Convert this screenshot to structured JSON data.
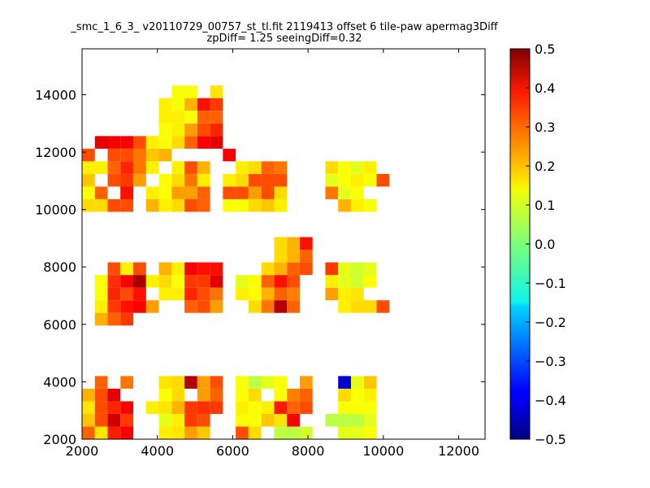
{
  "chart_data": {
    "type": "heatmap",
    "title": "_smc_1_6_3_ v20110729_00757_st_tl.fit 2119413 offset 6 tile-paw apermag3Diff",
    "subtitle": "zpDiff= 1.25 seeingDiff=0.32",
    "xlabel": "",
    "ylabel": "",
    "xlim": [
      2000,
      12700
    ],
    "ylim": [
      2000,
      15600
    ],
    "x_ticks": [
      "2000",
      "4000",
      "6000",
      "8000",
      "10000",
      "12000"
    ],
    "y_ticks": [
      "2000",
      "4000",
      "6000",
      "8000",
      "10000",
      "12000",
      "14000"
    ],
    "colormap": "jet",
    "clim": [
      -0.5,
      0.5
    ],
    "colorbar_ticks": [
      "0.5",
      "0.4",
      "0.3",
      "0.2",
      "0.1",
      "0.0",
      "−0.1",
      "−0.2",
      "−0.3",
      "−0.4",
      "−0.5"
    ],
    "colorbar_tick_values": [
      0.5,
      0.4,
      0.3,
      0.2,
      0.1,
      0.0,
      -0.1,
      -0.2,
      -0.3,
      -0.4,
      -0.5
    ],
    "grid": false,
    "cell_size": [
      340,
      440
    ],
    "x0": 2000,
    "y0": 2000,
    "cells": [
      [
        0,
        0,
        0.28
      ],
      [
        1,
        0,
        0.15
      ],
      [
        2,
        0,
        0.35
      ],
      [
        3,
        0,
        0.38
      ],
      [
        0,
        1,
        0.18
      ],
      [
        1,
        1,
        0.3
      ],
      [
        2,
        1,
        0.42
      ],
      [
        3,
        1,
        0.32
      ],
      [
        0,
        2,
        0.15
      ],
      [
        1,
        2,
        0.3
      ],
      [
        2,
        2,
        0.34
      ],
      [
        3,
        2,
        0.38
      ],
      [
        0,
        3,
        0.2
      ],
      [
        1,
        3,
        0.3
      ],
      [
        2,
        3,
        0.4
      ],
      [
        3,
        4,
        0.26
      ],
      [
        1,
        4,
        0.28
      ],
      [
        6,
        0,
        0.14
      ],
      [
        7,
        0,
        0.15
      ],
      [
        8,
        0,
        0.22
      ],
      [
        9,
        0,
        0.18
      ],
      [
        6,
        1,
        0.1
      ],
      [
        7,
        1,
        0.14
      ],
      [
        8,
        1,
        0.32
      ],
      [
        9,
        1,
        0.3
      ],
      [
        5,
        2,
        0.14
      ],
      [
        6,
        2,
        0.15
      ],
      [
        7,
        2,
        0.2
      ],
      [
        8,
        2,
        0.32
      ],
      [
        9,
        2,
        0.33
      ],
      [
        10,
        2,
        0.32
      ],
      [
        6,
        3,
        0.12
      ],
      [
        7,
        3,
        0.16
      ],
      [
        9,
        3,
        0.22
      ],
      [
        10,
        3,
        0.28
      ],
      [
        6,
        4,
        0.15
      ],
      [
        7,
        4,
        0.16
      ],
      [
        8,
        4,
        0.45
      ],
      [
        9,
        4,
        0.22
      ],
      [
        10,
        4,
        0.3
      ],
      [
        12,
        0,
        0.3
      ],
      [
        13,
        0,
        0.16
      ],
      [
        15,
        0,
        0.06
      ],
      [
        16,
        0,
        0.06
      ],
      [
        17,
        0,
        0.08
      ],
      [
        12,
        1,
        0.12
      ],
      [
        13,
        1,
        0.12
      ],
      [
        14,
        1,
        0.18
      ],
      [
        15,
        1,
        0.15
      ],
      [
        16,
        1,
        0.38
      ],
      [
        12,
        2,
        0.14
      ],
      [
        13,
        2,
        0.12
      ],
      [
        14,
        2,
        0.14
      ],
      [
        15,
        2,
        0.35
      ],
      [
        16,
        2,
        0.28
      ],
      [
        17,
        2,
        0.3
      ],
      [
        12,
        3,
        0.12
      ],
      [
        13,
        3,
        0.16
      ],
      [
        15,
        3,
        0.12
      ],
      [
        16,
        3,
        0.25
      ],
      [
        17,
        3,
        0.28
      ],
      [
        12,
        4,
        0.12
      ],
      [
        13,
        4,
        0.06
      ],
      [
        14,
        4,
        0.1
      ],
      [
        15,
        4,
        0.12
      ],
      [
        17,
        4,
        0.22
      ],
      [
        20,
        0,
        0.1
      ],
      [
        21,
        0,
        0.1
      ],
      [
        22,
        0,
        0.12
      ],
      [
        19,
        1,
        0.06
      ],
      [
        20,
        1,
        0.06
      ],
      [
        21,
        1,
        0.06
      ],
      [
        22,
        1,
        0.1
      ],
      [
        20,
        2,
        0.12
      ],
      [
        21,
        2,
        0.12
      ],
      [
        22,
        2,
        0.12
      ],
      [
        20,
        3,
        0.16
      ],
      [
        21,
        3,
        0.12
      ],
      [
        22,
        3,
        0.14
      ],
      [
        20,
        4,
        -0.42
      ],
      [
        21,
        4,
        0.1
      ],
      [
        22,
        4,
        0.18
      ],
      [
        1,
        9,
        0.2
      ],
      [
        2,
        9,
        0.28
      ],
      [
        3,
        9,
        0.32
      ],
      [
        1,
        10,
        0.14
      ],
      [
        2,
        10,
        0.32
      ],
      [
        3,
        10,
        0.36
      ],
      [
        4,
        10,
        0.38
      ],
      [
        1,
        11,
        0.12
      ],
      [
        2,
        11,
        0.34
      ],
      [
        3,
        11,
        0.3
      ],
      [
        4,
        11,
        0.36
      ],
      [
        1,
        12,
        0.12
      ],
      [
        2,
        12,
        0.33
      ],
      [
        3,
        12,
        0.38
      ],
      [
        4,
        12,
        0.46
      ],
      [
        2,
        13,
        0.3
      ],
      [
        3,
        13,
        0.14
      ],
      [
        4,
        13,
        0.3
      ],
      [
        5,
        10,
        0.22
      ],
      [
        6,
        11,
        0.14
      ],
      [
        7,
        11,
        0.14
      ],
      [
        5,
        12,
        0.14
      ],
      [
        6,
        12,
        0.16
      ],
      [
        7,
        12,
        0.12
      ],
      [
        8,
        12,
        0.14
      ],
      [
        6,
        13,
        0.2
      ],
      [
        7,
        13,
        0.14
      ],
      [
        8,
        13,
        0.38
      ],
      [
        8,
        10,
        0.28
      ],
      [
        9,
        10,
        0.3
      ],
      [
        10,
        10,
        0.22
      ],
      [
        8,
        11,
        0.34
      ],
      [
        9,
        11,
        0.3
      ],
      [
        10,
        11,
        0.26
      ],
      [
        8,
        12,
        0.32
      ],
      [
        9,
        12,
        0.32
      ],
      [
        10,
        12,
        0.4
      ],
      [
        9,
        13,
        0.36
      ],
      [
        10,
        13,
        0.36
      ],
      [
        12,
        11,
        0.14
      ],
      [
        13,
        11,
        0.12
      ],
      [
        14,
        11,
        0.2
      ],
      [
        15,
        11,
        0.28
      ],
      [
        16,
        11,
        0.25
      ],
      [
        13,
        10,
        0.16
      ],
      [
        14,
        10,
        0.26
      ],
      [
        15,
        10,
        0.45
      ],
      [
        16,
        10,
        0.28
      ],
      [
        12,
        12,
        0.1
      ],
      [
        13,
        12,
        0.12
      ],
      [
        14,
        12,
        0.28
      ],
      [
        15,
        12,
        0.36
      ],
      [
        16,
        12,
        0.3
      ],
      [
        14,
        13,
        0.16
      ],
      [
        15,
        13,
        0.2
      ],
      [
        16,
        13,
        0.28
      ],
      [
        17,
        13,
        0.3
      ],
      [
        15,
        14,
        0.16
      ],
      [
        16,
        14,
        0.2
      ],
      [
        17,
        14,
        0.28
      ],
      [
        15,
        15,
        0.16
      ],
      [
        16,
        15,
        0.2
      ],
      [
        17,
        15,
        0.36
      ],
      [
        20,
        10,
        0.14
      ],
      [
        21,
        10,
        0.16
      ],
      [
        22,
        10,
        0.16
      ],
      [
        19,
        11,
        0.22
      ],
      [
        20,
        11,
        0.14
      ],
      [
        21,
        11,
        0.15
      ],
      [
        19,
        12,
        0.14
      ],
      [
        20,
        12,
        0.1
      ],
      [
        21,
        12,
        0.08
      ],
      [
        22,
        12,
        0.12
      ],
      [
        19,
        13,
        0.32
      ],
      [
        20,
        13,
        0.1
      ],
      [
        21,
        13,
        0.08
      ],
      [
        22,
        13,
        0.1
      ],
      [
        23,
        10,
        0.3
      ],
      [
        0,
        18,
        0.16
      ],
      [
        1,
        18,
        0.16
      ],
      [
        2,
        18,
        0.3
      ],
      [
        3,
        18,
        0.3
      ],
      [
        0,
        19,
        0.12
      ],
      [
        1,
        19,
        0.28
      ],
      [
        3,
        19,
        0.3
      ],
      [
        0,
        20,
        0.18
      ],
      [
        2,
        20,
        0.3
      ],
      [
        3,
        20,
        0.34
      ],
      [
        4,
        20,
        0.22
      ],
      [
        0,
        21,
        0.14
      ],
      [
        1,
        21,
        0.14
      ],
      [
        2,
        21,
        0.28
      ],
      [
        3,
        21,
        0.34
      ],
      [
        4,
        21,
        0.26
      ],
      [
        2,
        22,
        0.3
      ],
      [
        3,
        22,
        0.3
      ],
      [
        4,
        22,
        0.28
      ],
      [
        2,
        23,
        0.38
      ],
      [
        3,
        23,
        0.38
      ],
      [
        3,
        19,
        0.36
      ],
      [
        3,
        20,
        0.32
      ],
      [
        5,
        19,
        0.14
      ],
      [
        6,
        19,
        0.12
      ],
      [
        7,
        19,
        0.22
      ],
      [
        8,
        19,
        0.22
      ],
      [
        9,
        19,
        0.28
      ],
      [
        5,
        18,
        0.2
      ],
      [
        6,
        18,
        0.14
      ],
      [
        7,
        18,
        0.16
      ],
      [
        8,
        18,
        0.3
      ],
      [
        9,
        18,
        0.28
      ],
      [
        6,
        20,
        0.12
      ],
      [
        7,
        20,
        0.16
      ],
      [
        8,
        20,
        0.26
      ],
      [
        9,
        20,
        0.14
      ],
      [
        5,
        21,
        0.14
      ],
      [
        7,
        21,
        0.14
      ],
      [
        8,
        21,
        0.3
      ],
      [
        9,
        21,
        0.2
      ],
      [
        4,
        22,
        0.26
      ],
      [
        5,
        22,
        0.18
      ],
      [
        6,
        22,
        0.2
      ],
      [
        11,
        19,
        0.3
      ],
      [
        12,
        19,
        0.3
      ],
      [
        13,
        19,
        0.22
      ],
      [
        14,
        19,
        0.3
      ],
      [
        15,
        19,
        0.16
      ],
      [
        11,
        18,
        0.12
      ],
      [
        12,
        18,
        0.12
      ],
      [
        13,
        18,
        0.16
      ],
      [
        14,
        18,
        0.18
      ],
      [
        15,
        18,
        0.14
      ],
      [
        11,
        20,
        0.14
      ],
      [
        12,
        20,
        0.16
      ],
      [
        13,
        20,
        0.3
      ],
      [
        14,
        20,
        0.3
      ],
      [
        15,
        20,
        0.3
      ],
      [
        12,
        21,
        0.14
      ],
      [
        13,
        21,
        0.16
      ],
      [
        14,
        21,
        0.28
      ],
      [
        15,
        21,
        0.26
      ],
      [
        11,
        22,
        0.38
      ],
      [
        20,
        18,
        0.2
      ],
      [
        21,
        18,
        0.14
      ],
      [
        22,
        18,
        0.12
      ],
      [
        19,
        19,
        0.26
      ],
      [
        20,
        19,
        0.1
      ],
      [
        21,
        19,
        0.12
      ],
      [
        19,
        20,
        0.1
      ],
      [
        20,
        20,
        0.12
      ],
      [
        21,
        20,
        0.14
      ],
      [
        22,
        20,
        0.12
      ],
      [
        19,
        21,
        0.16
      ],
      [
        20,
        21,
        0.12
      ],
      [
        21,
        21,
        0.1
      ],
      [
        22,
        21,
        0.14
      ],
      [
        23,
        20,
        0.3
      ],
      [
        1,
        23,
        0.4
      ],
      [
        0,
        22,
        0.3
      ],
      [
        4,
        23,
        0.3
      ],
      [
        5,
        23,
        0.14
      ],
      [
        7,
        27,
        0.12
      ],
      [
        8,
        27,
        0.12
      ],
      [
        10,
        27,
        0.15
      ],
      [
        6,
        26,
        0.14
      ],
      [
        7,
        26,
        0.12
      ],
      [
        8,
        26,
        0.2
      ],
      [
        9,
        26,
        0.36
      ],
      [
        10,
        26,
        0.32
      ],
      [
        6,
        25,
        0.14
      ],
      [
        7,
        25,
        0.14
      ],
      [
        8,
        25,
        0.12
      ],
      [
        9,
        25,
        0.28
      ],
      [
        10,
        25,
        0.28
      ],
      [
        6,
        24,
        0.12
      ],
      [
        7,
        24,
        0.14
      ],
      [
        8,
        24,
        0.22
      ],
      [
        9,
        24,
        0.3
      ],
      [
        10,
        24,
        0.34
      ],
      [
        5,
        23,
        0.14
      ],
      [
        6,
        23,
        0.12
      ],
      [
        7,
        23,
        0.16
      ],
      [
        8,
        23,
        0.28
      ],
      [
        9,
        23,
        0.38
      ],
      [
        10,
        23,
        0.4
      ]
    ]
  }
}
